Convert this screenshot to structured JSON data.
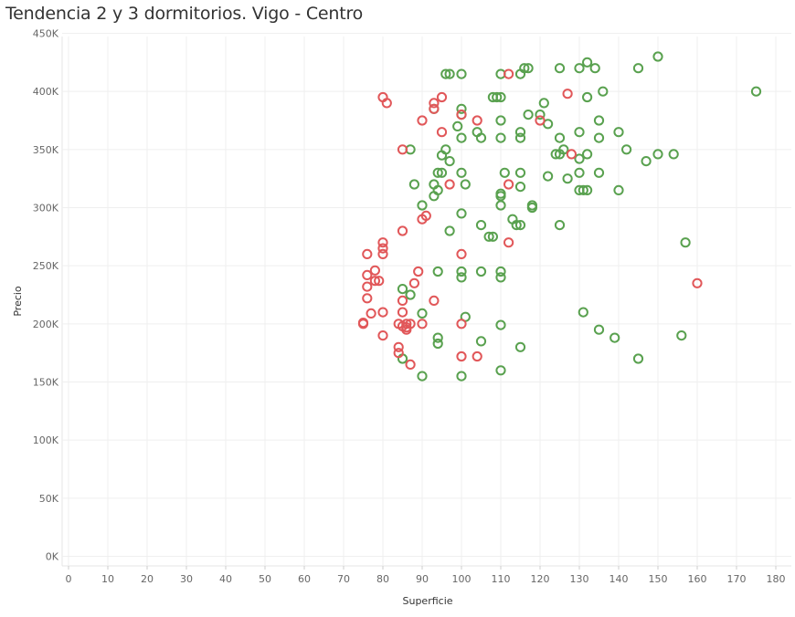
{
  "chart_data": {
    "type": "scatter",
    "title": "Tendencia 2 y 3 dormitorios. Vigo - Centro",
    "xlabel": "Superficie",
    "ylabel": "Precio",
    "xlim": [
      0,
      185
    ],
    "ylim": [
      0,
      450000
    ],
    "x_ticks": [
      "0",
      "10",
      "20",
      "30",
      "40",
      "50",
      "60",
      "70",
      "80",
      "90",
      "100",
      "110",
      "120",
      "130",
      "140",
      "150",
      "160",
      "170",
      "180"
    ],
    "y_ticks": [
      "0K",
      "50K",
      "100K",
      "150K",
      "200K",
      "250K",
      "300K",
      "350K",
      "400K",
      "450K"
    ],
    "grid": true,
    "series": [
      {
        "color": "#59a14f",
        "points": [
          [
            96,
            415000
          ],
          [
            97,
            415000
          ],
          [
            100,
            415000
          ],
          [
            110,
            415000
          ],
          [
            115,
            415000
          ],
          [
            116,
            420000
          ],
          [
            117,
            420000
          ],
          [
            125,
            420000
          ],
          [
            130,
            420000
          ],
          [
            132,
            425000
          ],
          [
            134,
            420000
          ],
          [
            145,
            420000
          ],
          [
            150,
            430000
          ],
          [
            108,
            395000
          ],
          [
            109,
            395000
          ],
          [
            110,
            395000
          ],
          [
            121,
            390000
          ],
          [
            132,
            395000
          ],
          [
            136,
            400000
          ],
          [
            175,
            400000
          ],
          [
            93,
            385000
          ],
          [
            100,
            385000
          ],
          [
            100,
            380000
          ],
          [
            117,
            380000
          ],
          [
            120,
            380000
          ],
          [
            99,
            370000
          ],
          [
            110,
            375000
          ],
          [
            122,
            372000
          ],
          [
            135,
            375000
          ],
          [
            104,
            365000
          ],
          [
            115,
            365000
          ],
          [
            130,
            365000
          ],
          [
            140,
            365000
          ],
          [
            100,
            360000
          ],
          [
            105,
            360000
          ],
          [
            110,
            360000
          ],
          [
            115,
            360000
          ],
          [
            125,
            360000
          ],
          [
            135,
            360000
          ],
          [
            87,
            350000
          ],
          [
            96,
            350000
          ],
          [
            126,
            350000
          ],
          [
            142,
            350000
          ],
          [
            95,
            345000
          ],
          [
            124,
            346000
          ],
          [
            125,
            346000
          ],
          [
            132,
            346000
          ],
          [
            150,
            346000
          ],
          [
            154,
            346000
          ],
          [
            97,
            340000
          ],
          [
            130,
            342000
          ],
          [
            147,
            340000
          ],
          [
            94,
            330000
          ],
          [
            95,
            330000
          ],
          [
            100,
            330000
          ],
          [
            111,
            330000
          ],
          [
            115,
            330000
          ],
          [
            122,
            327000
          ],
          [
            127,
            325000
          ],
          [
            130,
            330000
          ],
          [
            135,
            330000
          ],
          [
            88,
            320000
          ],
          [
            93,
            320000
          ],
          [
            101,
            320000
          ],
          [
            115,
            318000
          ],
          [
            94,
            315000
          ],
          [
            130,
            315000
          ],
          [
            131,
            315000
          ],
          [
            132,
            315000
          ],
          [
            140,
            315000
          ],
          [
            93,
            310000
          ],
          [
            110,
            310000
          ],
          [
            110,
            312000
          ],
          [
            90,
            302000
          ],
          [
            110,
            302000
          ],
          [
            118,
            300000
          ],
          [
            118,
            302000
          ],
          [
            100,
            295000
          ],
          [
            113,
            290000
          ],
          [
            105,
            285000
          ],
          [
            114,
            285000
          ],
          [
            115,
            285000
          ],
          [
            125,
            285000
          ],
          [
            97,
            280000
          ],
          [
            107,
            275000
          ],
          [
            108,
            275000
          ],
          [
            157,
            270000
          ],
          [
            94,
            245000
          ],
          [
            100,
            245000
          ],
          [
            105,
            245000
          ],
          [
            110,
            245000
          ],
          [
            100,
            240000
          ],
          [
            110,
            240000
          ],
          [
            85,
            230000
          ],
          [
            87,
            225000
          ],
          [
            90,
            209000
          ],
          [
            101,
            206000
          ],
          [
            131,
            210000
          ],
          [
            110,
            199000
          ],
          [
            135,
            195000
          ],
          [
            94,
            188000
          ],
          [
            139,
            188000
          ],
          [
            156,
            190000
          ],
          [
            94,
            183000
          ],
          [
            105,
            185000
          ],
          [
            115,
            180000
          ],
          [
            85,
            170000
          ],
          [
            145,
            170000
          ],
          [
            110,
            160000
          ],
          [
            90,
            155000
          ],
          [
            100,
            155000
          ]
        ]
      },
      {
        "color": "#e15759",
        "points": [
          [
            112,
            415000
          ],
          [
            80,
            395000
          ],
          [
            81,
            390000
          ],
          [
            93,
            390000
          ],
          [
            95,
            395000
          ],
          [
            127,
            398000
          ],
          [
            93,
            385000
          ],
          [
            100,
            380000
          ],
          [
            90,
            375000
          ],
          [
            104,
            375000
          ],
          [
            120,
            375000
          ],
          [
            95,
            365000
          ],
          [
            85,
            350000
          ],
          [
            128,
            346000
          ],
          [
            97,
            320000
          ],
          [
            112,
            320000
          ],
          [
            91,
            293000
          ],
          [
            90,
            290000
          ],
          [
            85,
            280000
          ],
          [
            112,
            270000
          ],
          [
            80,
            270000
          ],
          [
            80,
            265000
          ],
          [
            76,
            260000
          ],
          [
            80,
            260000
          ],
          [
            100,
            260000
          ],
          [
            78,
            246000
          ],
          [
            89,
            245000
          ],
          [
            76,
            242000
          ],
          [
            78,
            237000
          ],
          [
            79,
            237000
          ],
          [
            88,
            235000
          ],
          [
            76,
            232000
          ],
          [
            160,
            235000
          ],
          [
            76,
            222000
          ],
          [
            85,
            220000
          ],
          [
            93,
            220000
          ],
          [
            77,
            209000
          ],
          [
            80,
            210000
          ],
          [
            85,
            210000
          ],
          [
            75,
            200000
          ],
          [
            75,
            201000
          ],
          [
            84,
            200000
          ],
          [
            86,
            200000
          ],
          [
            87,
            200000
          ],
          [
            90,
            200000
          ],
          [
            100,
            200000
          ],
          [
            85,
            198000
          ],
          [
            86,
            197000
          ],
          [
            86,
            195000
          ],
          [
            80,
            190000
          ],
          [
            84,
            180000
          ],
          [
            84,
            175000
          ],
          [
            100,
            172000
          ],
          [
            104,
            172000
          ],
          [
            87,
            165000
          ]
        ]
      }
    ]
  }
}
